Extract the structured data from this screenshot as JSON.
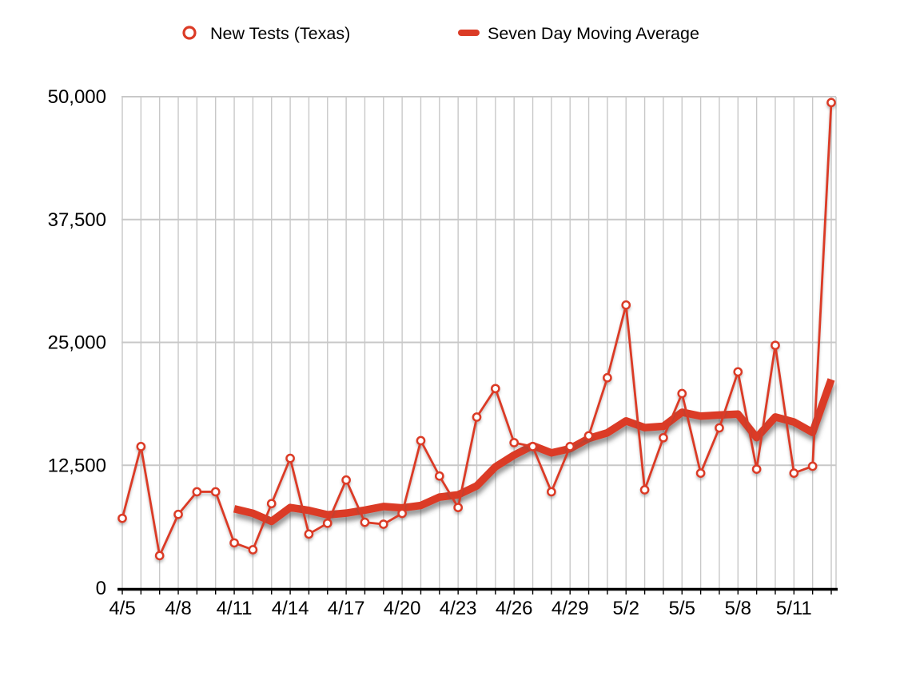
{
  "legend": {
    "series1_label": "New Tests (Texas)",
    "series2_label": "Seven Day Moving Average"
  },
  "colors": {
    "series": "#DB3B26",
    "grid": "#C8C8C8",
    "axis": "#000000",
    "text": "#000000",
    "background": "#FFFFFF"
  },
  "chart_data": {
    "type": "line",
    "title": "",
    "x": [
      "4/5",
      "4/6",
      "4/7",
      "4/8",
      "4/9",
      "4/10",
      "4/11",
      "4/12",
      "4/13",
      "4/14",
      "4/15",
      "4/16",
      "4/17",
      "4/18",
      "4/19",
      "4/20",
      "4/21",
      "4/22",
      "4/23",
      "4/24",
      "4/25",
      "4/26",
      "4/27",
      "4/28",
      "4/29",
      "4/30",
      "5/1",
      "5/2",
      "5/3",
      "5/4",
      "5/5",
      "5/6",
      "5/7",
      "5/8",
      "5/9",
      "5/10",
      "5/11",
      "5/12",
      "5/13"
    ],
    "series": [
      {
        "name": "New Tests (Texas)",
        "style": "thin-with-markers",
        "values": [
          7100,
          14400,
          3300,
          7500,
          9800,
          9800,
          4600,
          3900,
          8600,
          13200,
          5500,
          6600,
          11000,
          6700,
          6500,
          7600,
          15000,
          11400,
          8200,
          17400,
          20300,
          14800,
          14400,
          9800,
          14400,
          15500,
          21400,
          28800,
          10000,
          15300,
          19800,
          11700,
          16300,
          22000,
          12100,
          24700,
          11700,
          12400,
          49400
        ]
      },
      {
        "name": "Seven Day Moving Average",
        "style": "thick",
        "start_index": 6,
        "values": [
          8070,
          7610,
          6790,
          8200,
          7910,
          7460,
          7630,
          7930,
          8300,
          8160,
          8410,
          9260,
          9490,
          10400,
          12340,
          13530,
          14500,
          13760,
          14190,
          15230,
          15800,
          17010,
          16330,
          16460,
          17890,
          17500,
          17610,
          17700,
          15310,
          17410,
          16900,
          15840,
          21230
        ]
      }
    ],
    "x_tick_labels": [
      "4/5",
      "4/8",
      "4/11",
      "4/14",
      "4/17",
      "4/20",
      "4/23",
      "4/26",
      "4/29",
      "5/2",
      "5/5",
      "5/8",
      "5/11"
    ],
    "x_tick_every": 3,
    "y_ticks": [
      0,
      12500,
      25000,
      37500,
      50000
    ],
    "y_tick_labels": [
      "0",
      "12,500",
      "25,000",
      "37,500",
      "50,000"
    ],
    "ylim": [
      0,
      50000
    ],
    "grid": "both",
    "legend_position": "top"
  }
}
